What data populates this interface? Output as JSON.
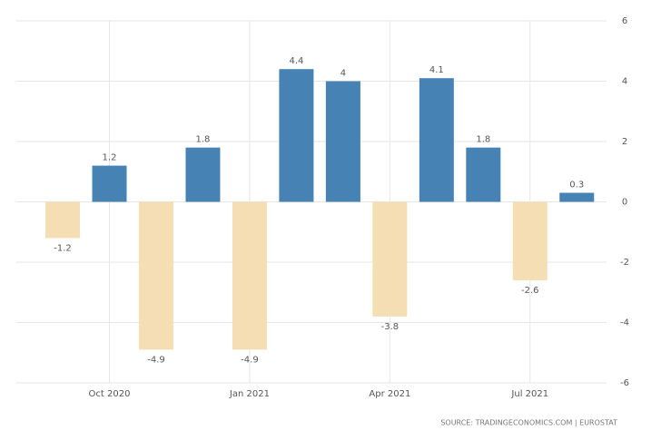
{
  "chart_data": {
    "type": "bar",
    "categories": [
      null,
      "Oct 2020",
      null,
      null,
      "Jan 2021",
      null,
      null,
      "Apr 2021",
      null,
      null,
      "Jul 2021",
      null
    ],
    "values": [
      -1.2,
      1.2,
      -4.9,
      1.8,
      -4.9,
      4.4,
      4,
      -3.8,
      4.1,
      1.8,
      -2.6,
      0.3
    ],
    "positive_color": "#4682b4",
    "negative_color": "#f5deb3",
    "ylim": [
      -6,
      6
    ],
    "yticks": [
      -6,
      -4,
      -2,
      0,
      2,
      4,
      6
    ],
    "grid": true,
    "source": "SOURCE: TRADINGECONOMICS.COM | EUROSTAT"
  }
}
